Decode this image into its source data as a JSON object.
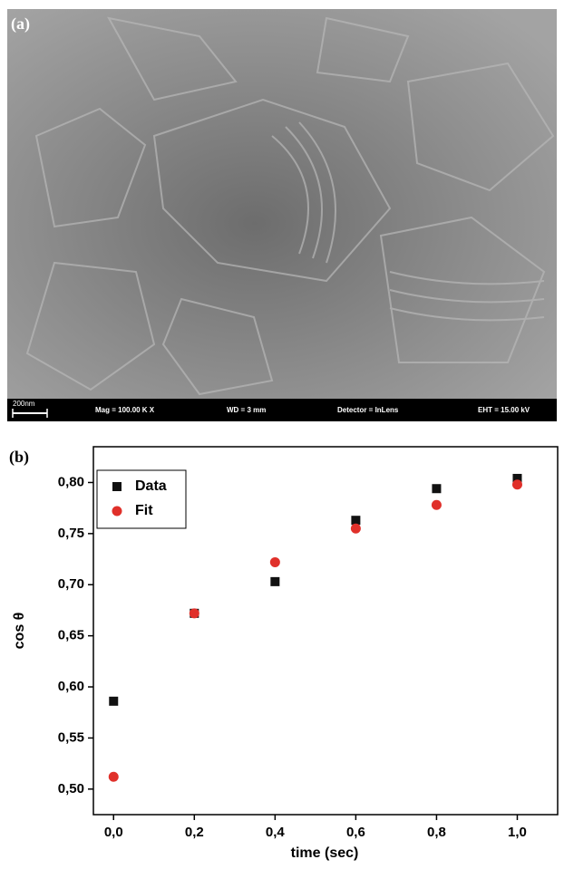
{
  "image": {
    "label": "(a)",
    "scale_bar": "200nm",
    "info": [
      "Mag = 100.00 K X",
      "WD =   3 mm",
      "Detector = InLens",
      "EHT = 15.00 kV"
    ]
  },
  "chart_data": {
    "type": "scatter",
    "panel_label": "(b)",
    "x_label": "time (sec)",
    "y_label": "cos θ",
    "x": [
      0,
      0.2,
      0.4,
      0.6,
      0.8,
      1.0
    ],
    "series": [
      {
        "name": "Data",
        "color": "#111111",
        "marker": "square",
        "values": [
          0.586,
          0.672,
          0.703,
          0.763,
          0.794,
          0.804
        ]
      },
      {
        "name": "Fit",
        "color": "#e0302a",
        "marker": "circle",
        "values": [
          0.512,
          0.672,
          0.722,
          0.755,
          0.778,
          0.798
        ]
      }
    ],
    "xlim": [
      -0.05,
      1.1
    ],
    "ylim": [
      0.475,
      0.835
    ],
    "xticks": [
      {
        "value": 0,
        "label": "0,0"
      },
      {
        "value": 0.2,
        "label": "0,2"
      },
      {
        "value": 0.4,
        "label": "0,4"
      },
      {
        "value": 0.6,
        "label": "0,6"
      },
      {
        "value": 0.8,
        "label": "0,8"
      },
      {
        "value": 1.0,
        "label": "1,0"
      }
    ],
    "yticks": [
      {
        "value": 0.5,
        "label": "0,50"
      },
      {
        "value": 0.55,
        "label": "0,55"
      },
      {
        "value": 0.6,
        "label": "0,60"
      },
      {
        "value": 0.65,
        "label": "0,65"
      },
      {
        "value": 0.7,
        "label": "0,70"
      },
      {
        "value": 0.75,
        "label": "0,75"
      },
      {
        "value": 0.8,
        "label": "0,80"
      }
    ],
    "legend": "upper left"
  }
}
